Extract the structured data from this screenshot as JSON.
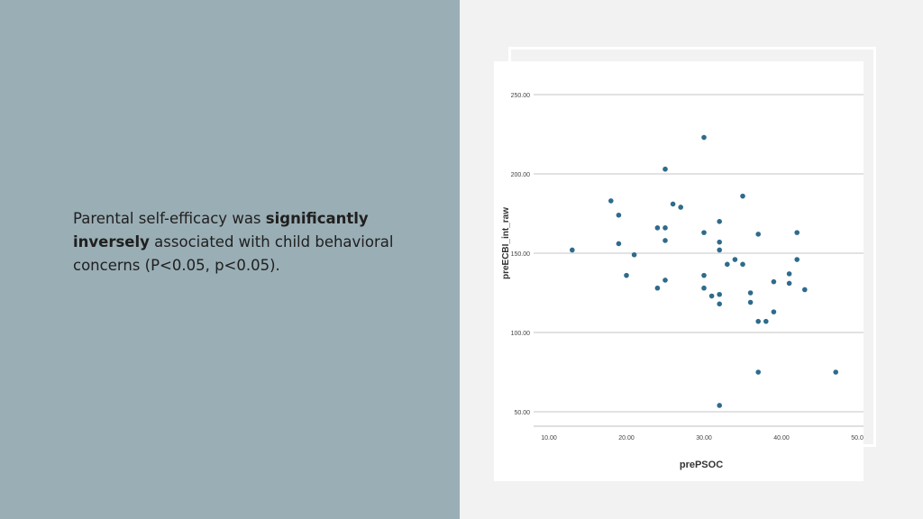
{
  "slide": {
    "text_prefix": "Parental self-efficacy was ",
    "text_bold": "significantly inversely",
    "text_suffix": " associated with child behavioral concerns (P<0.05, p<0.05).",
    "panel_color": "#9aaeb5",
    "background_color": "#f2f2f2"
  },
  "chart_data": {
    "type": "scatter",
    "xlabel": "prePSOC",
    "ylabel": "preECBI_int_raw",
    "xlim": [
      10,
      50
    ],
    "ylim": [
      50,
      250
    ],
    "x_ticks": [
      "10.00",
      "20.00",
      "30.00",
      "40.00",
      "50.00"
    ],
    "y_ticks": [
      "50.00",
      "100.00",
      "150.00",
      "200.00",
      "250.00"
    ],
    "grid": "horizontal",
    "point_color": "#2e6b8c",
    "points": [
      [
        13,
        152
      ],
      [
        18,
        183
      ],
      [
        19,
        174
      ],
      [
        19,
        156
      ],
      [
        20,
        136
      ],
      [
        21,
        149
      ],
      [
        24,
        166
      ],
      [
        24,
        128
      ],
      [
        25,
        203
      ],
      [
        25,
        166
      ],
      [
        25,
        158
      ],
      [
        25,
        133
      ],
      [
        26,
        181
      ],
      [
        27,
        179
      ],
      [
        30,
        223
      ],
      [
        30,
        163
      ],
      [
        30,
        136
      ],
      [
        30,
        128
      ],
      [
        31,
        123
      ],
      [
        32,
        170
      ],
      [
        32,
        157
      ],
      [
        32,
        152
      ],
      [
        32,
        124
      ],
      [
        32,
        118
      ],
      [
        32,
        54
      ],
      [
        33,
        143
      ],
      [
        34,
        146
      ],
      [
        35,
        186
      ],
      [
        35,
        143
      ],
      [
        36,
        125
      ],
      [
        36,
        119
      ],
      [
        37,
        162
      ],
      [
        37,
        107
      ],
      [
        37,
        75
      ],
      [
        38,
        107
      ],
      [
        39,
        132
      ],
      [
        39,
        113
      ],
      [
        41,
        137
      ],
      [
        41,
        131
      ],
      [
        42,
        163
      ],
      [
        42,
        146
      ],
      [
        43,
        127
      ],
      [
        47,
        75
      ]
    ]
  }
}
